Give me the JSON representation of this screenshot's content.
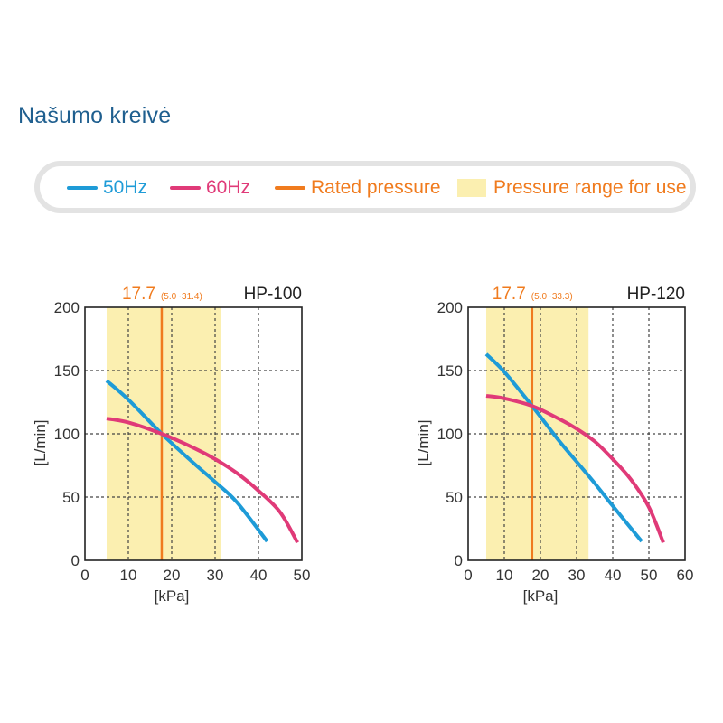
{
  "page": {
    "title": "Našumo kreivė"
  },
  "legend": {
    "items": [
      {
        "label": "50Hz",
        "color": "#1e9bd7",
        "kind": "line"
      },
      {
        "label": "60Hz",
        "color": "#e03a78",
        "kind": "line"
      },
      {
        "label": "Rated pressure",
        "color": "#f07b1e",
        "kind": "line"
      },
      {
        "label": "Pressure range for use",
        "color": "#fbefb0",
        "text_color": "#f07b1e",
        "kind": "swatch"
      }
    ]
  },
  "chart_data": [
    {
      "type": "line",
      "title": "HP-100",
      "xlabel": "[kPa]",
      "ylabel": "[L/min]",
      "xlim": [
        0,
        50
      ],
      "ylim": [
        0,
        200
      ],
      "xticks": [
        0,
        10,
        20,
        30,
        40,
        50
      ],
      "yticks": [
        0,
        50,
        100,
        150,
        200
      ],
      "grid": true,
      "rated_pressure": {
        "value": 17.7,
        "label": "17.7",
        "range_label": "(5.0~31.4)"
      },
      "use_range": [
        5.0,
        31.4
      ],
      "series": [
        {
          "name": "50Hz",
          "color": "#1e9bd7",
          "x": [
            5,
            10,
            17.7,
            25,
            30,
            35,
            42
          ],
          "y": [
            142,
            127,
            100,
            77,
            62,
            46,
            15
          ]
        },
        {
          "name": "60Hz",
          "color": "#e03a78",
          "x": [
            5,
            10,
            17.7,
            25,
            30,
            35,
            40,
            45,
            49
          ],
          "y": [
            112,
            109,
            100,
            89,
            80,
            69,
            55,
            38,
            14
          ]
        }
      ]
    },
    {
      "type": "line",
      "title": "HP-120",
      "xlabel": "[kPa]",
      "ylabel": "[L/min]",
      "xlim": [
        0,
        60
      ],
      "ylim": [
        0,
        200
      ],
      "xticks": [
        0,
        10,
        20,
        30,
        40,
        50,
        60
      ],
      "yticks": [
        0,
        50,
        100,
        150,
        200
      ],
      "grid": true,
      "rated_pressure": {
        "value": 17.7,
        "label": "17.7",
        "range_label": "(5.0~33.3)"
      },
      "use_range": [
        5.0,
        33.3
      ],
      "series": [
        {
          "name": "50Hz",
          "color": "#1e9bd7",
          "x": [
            5,
            10,
            17.7,
            25,
            30,
            35,
            40,
            48
          ],
          "y": [
            163,
            149,
            122,
            95,
            78,
            61,
            43,
            15
          ]
        },
        {
          "name": "60Hz",
          "color": "#e03a78",
          "x": [
            5,
            10,
            17.7,
            25,
            30,
            35,
            40,
            45,
            50,
            54
          ],
          "y": [
            130,
            128,
            122,
            112,
            104,
            94,
            80,
            64,
            42,
            14
          ]
        }
      ]
    }
  ]
}
